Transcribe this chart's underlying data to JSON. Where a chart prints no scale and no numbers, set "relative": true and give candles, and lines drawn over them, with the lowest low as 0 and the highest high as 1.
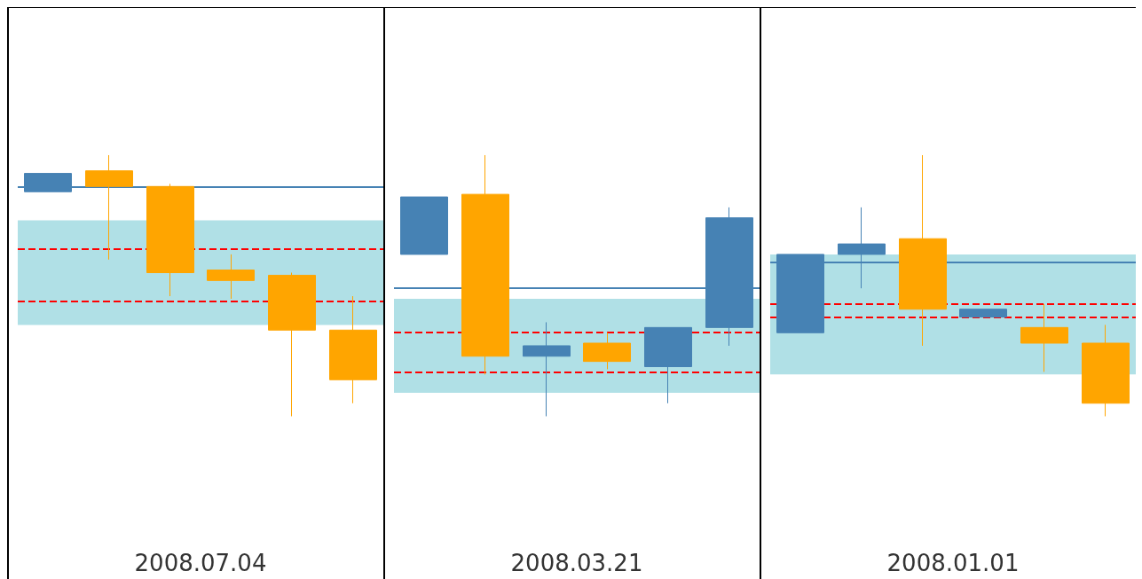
{
  "chart_data": [
    {
      "type": "candlestick",
      "xlabel": "2008.07.04",
      "relative": true,
      "grid": false,
      "categories": [
        null,
        null,
        null,
        null,
        null,
        null
      ],
      "ohlc": [
        [
          0.86,
          0.93,
          0.86,
          0.93
        ],
        [
          0.94,
          1,
          0.6,
          0.88
        ],
        [
          0.88,
          0.89,
          0.46,
          0.55
        ],
        [
          0.56,
          0.62,
          0.45,
          0.52
        ],
        [
          0.54,
          0.55,
          0,
          0.33
        ],
        [
          0.33,
          0.46,
          0.05,
          0.14
        ]
      ],
      "colors": [
        "#4682b4",
        "#ffa500",
        "#ffa500",
        "#ffa500",
        "#ffa500",
        "#ffa500"
      ],
      "ref_lines": [
        {
          "axis": "y",
          "value": 0.88,
          "color": "#4682b4",
          "line_style": "solid"
        },
        {
          "axis": "y",
          "value": 0.64,
          "color": "#ff0000",
          "line_style": "dashed"
        },
        {
          "axis": "y",
          "value": 0.44,
          "color": "#ff0000",
          "line_style": "dashed"
        }
      ],
      "bands": [
        {
          "axis": "y",
          "from": 0.35,
          "to": 0.75,
          "color": "#b0e0e6"
        }
      ]
    },
    {
      "type": "candlestick",
      "xlabel": "2008.03.21",
      "relative": true,
      "grid": false,
      "categories": [
        null,
        null,
        null,
        null,
        null,
        null
      ],
      "ohlc": [
        [
          0.62,
          0.84,
          0.62,
          0.84
        ],
        [
          0.85,
          1,
          0.16,
          0.23
        ],
        [
          0.23,
          0.36,
          0,
          0.27
        ],
        [
          0.28,
          0.32,
          0.18,
          0.21
        ],
        [
          0.19,
          0.34,
          0.05,
          0.34
        ],
        [
          0.34,
          0.8,
          0.27,
          0.76
        ]
      ],
      "colors": [
        "#4682b4",
        "#ffa500",
        "#4682b4",
        "#ffa500",
        "#4682b4",
        "#4682b4"
      ],
      "ref_lines": [
        {
          "axis": "y",
          "value": 0.49,
          "color": "#4682b4",
          "line_style": "solid"
        },
        {
          "axis": "y",
          "value": 0.32,
          "color": "#ff0000",
          "line_style": "dashed"
        },
        {
          "axis": "y",
          "value": 0.17,
          "color": "#ff0000",
          "line_style": "dashed"
        }
      ],
      "bands": [
        {
          "axis": "y",
          "from": 0.09,
          "to": 0.45,
          "color": "#b0e0e6"
        }
      ]
    },
    {
      "type": "candlestick",
      "xlabel": "2008.01.01",
      "relative": true,
      "grid": false,
      "categories": [
        null,
        null,
        null,
        null,
        null,
        null
      ],
      "ohlc": [
        [
          0.32,
          0.62,
          0.32,
          0.62
        ],
        [
          0.62,
          0.8,
          0.49,
          0.66
        ],
        [
          0.68,
          1,
          0.27,
          0.41
        ],
        [
          0.38,
          0.41,
          0.38,
          0.41
        ],
        [
          0.34,
          0.43,
          0.17,
          0.28
        ],
        [
          0.28,
          0.35,
          0,
          0.05
        ]
      ],
      "colors": [
        "#4682b4",
        "#4682b4",
        "#ffa500",
        "#4682b4",
        "#ffa500",
        "#ffa500"
      ],
      "ref_lines": [
        {
          "axis": "y",
          "value": 0.59,
          "color": "#4682b4",
          "line_style": "solid"
        },
        {
          "axis": "y",
          "value": 0.43,
          "color": "#ff0000",
          "line_style": "dashed"
        },
        {
          "axis": "y",
          "value": 0.38,
          "color": "#ff0000",
          "line_style": "dashed"
        }
      ],
      "bands": [
        {
          "axis": "y",
          "from": 0.16,
          "to": 0.62,
          "color": "#b0e0e6"
        }
      ]
    }
  ]
}
